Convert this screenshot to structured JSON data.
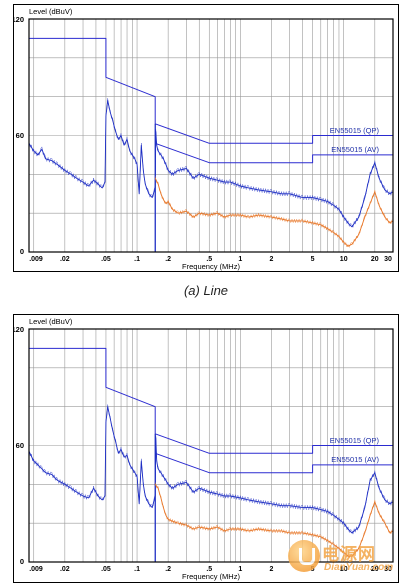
{
  "charts": [
    {
      "ylabel": "Level (dBuV)",
      "xlabel": "Frequency (MHz)",
      "yticks": [
        "0",
        "60",
        "120"
      ],
      "xticks": [
        ".009",
        ".02",
        ".05",
        ".1",
        ".2",
        ".5",
        "1",
        "2",
        "5",
        "10",
        "20",
        "30"
      ],
      "qp_label": "EN55015  (QP)",
      "av_label": "EN55015  (AV)"
    },
    {
      "ylabel": "Level (dBuV)",
      "xlabel": "Frequency (MHz)",
      "yticks": [
        "0",
        "60",
        "120"
      ],
      "xticks": [
        ".009",
        ".02",
        ".05",
        ".1",
        ".2",
        ".5",
        "1",
        "2",
        "5",
        "10",
        "20",
        "30"
      ],
      "qp_label": "EN55015  (QP)",
      "av_label": "EN55015  (AV)"
    }
  ],
  "caption": "(a) Line",
  "watermark": {
    "cn": "电源网",
    "en": "DianYuan.com",
    "icon": "power-plug-logo-icon"
  },
  "colors": {
    "limit": "#2b2bd0",
    "qp_trace": "#1f2fc4",
    "av_trace": "#e8782a",
    "grid": "#9a9a9a",
    "frame": "#000000"
  },
  "chart_data": [
    {
      "type": "line",
      "x_scale": "log",
      "xlim": [
        0.009,
        30
      ],
      "ylim": [
        0,
        120
      ],
      "grid": true,
      "series": [
        {
          "name": "EN55015  (QP)",
          "role": "limit_qp",
          "x": [
            0.009,
            0.05,
            0.05,
            0.15,
            0.15,
            0.5,
            5,
            5,
            30
          ],
          "y": [
            110,
            110,
            90,
            80,
            66,
            56,
            56,
            60,
            60
          ]
        },
        {
          "name": "EN55015  (AV)",
          "role": "limit_av",
          "x": [
            0.15,
            0.5,
            5,
            5,
            30
          ],
          "y": [
            56,
            46,
            46,
            50,
            50
          ]
        },
        {
          "role": "qp_trace",
          "x": [
            0.009,
            0.01,
            0.011,
            0.012,
            0.013,
            0.015,
            0.017,
            0.02,
            0.023,
            0.026,
            0.03,
            0.034,
            0.038,
            0.042,
            0.046,
            0.049,
            0.05,
            0.052,
            0.055,
            0.058,
            0.062,
            0.066,
            0.07,
            0.075,
            0.08,
            0.085,
            0.09,
            0.095,
            0.1,
            0.105,
            0.11,
            0.115,
            0.12,
            0.13,
            0.14,
            0.15,
            0.152,
            0.155,
            0.16,
            0.17,
            0.18,
            0.19,
            0.2,
            0.22,
            0.25,
            0.3,
            0.35,
            0.4,
            0.5,
            0.6,
            0.7,
            0.8,
            1,
            1.2,
            1.5,
            2,
            2.5,
            3,
            4,
            5,
            6,
            7,
            8,
            9,
            10,
            11,
            12,
            14,
            16,
            18,
            20,
            22,
            25,
            28,
            30
          ],
          "y": [
            56,
            52,
            50,
            53,
            48,
            47,
            45,
            42,
            40,
            38,
            36,
            34,
            37,
            35,
            33,
            36,
            70,
            78,
            72,
            68,
            62,
            58,
            60,
            55,
            58,
            52,
            50,
            48,
            45,
            30,
            55,
            42,
            35,
            30,
            28,
            33,
            62,
            55,
            52,
            50,
            48,
            45,
            42,
            40,
            42,
            43,
            38,
            40,
            38,
            37,
            36,
            36,
            34,
            33,
            32,
            31,
            30,
            30,
            28,
            28,
            27,
            26,
            24,
            22,
            18,
            15,
            13,
            18,
            28,
            40,
            46,
            38,
            32,
            30,
            31
          ]
        },
        {
          "role": "av_trace",
          "x": [
            0.15,
            0.16,
            0.17,
            0.18,
            0.19,
            0.2,
            0.22,
            0.25,
            0.3,
            0.35,
            0.4,
            0.5,
            0.6,
            0.7,
            0.8,
            1,
            1.2,
            1.5,
            2,
            2.5,
            3,
            4,
            5,
            6,
            7,
            8,
            9,
            10,
            11,
            12,
            14,
            16,
            18,
            20,
            22,
            25,
            28,
            30
          ],
          "y": [
            38,
            35,
            30,
            27,
            25,
            26,
            22,
            20,
            21,
            18,
            20,
            19,
            20,
            18,
            19,
            19,
            18,
            19,
            18,
            17,
            16,
            16,
            15,
            14,
            12,
            10,
            8,
            5,
            3,
            4,
            9,
            18,
            25,
            31,
            24,
            18,
            15,
            16
          ]
        }
      ]
    },
    {
      "type": "line",
      "x_scale": "log",
      "xlim": [
        0.009,
        30
      ],
      "ylim": [
        0,
        120
      ],
      "grid": true,
      "series": [
        {
          "name": "EN55015  (QP)",
          "role": "limit_qp",
          "x": [
            0.009,
            0.05,
            0.05,
            0.15,
            0.15,
            0.5,
            5,
            5,
            30
          ],
          "y": [
            110,
            110,
            90,
            80,
            66,
            56,
            56,
            60,
            60
          ]
        },
        {
          "name": "EN55015  (AV)",
          "role": "limit_av",
          "x": [
            0.15,
            0.5,
            5,
            5,
            30
          ],
          "y": [
            56,
            46,
            46,
            50,
            50
          ]
        },
        {
          "role": "qp_trace",
          "x": [
            0.009,
            0.01,
            0.011,
            0.012,
            0.013,
            0.015,
            0.017,
            0.02,
            0.023,
            0.026,
            0.03,
            0.034,
            0.038,
            0.042,
            0.046,
            0.049,
            0.05,
            0.052,
            0.055,
            0.058,
            0.062,
            0.066,
            0.07,
            0.075,
            0.08,
            0.085,
            0.09,
            0.095,
            0.1,
            0.105,
            0.11,
            0.115,
            0.12,
            0.13,
            0.14,
            0.15,
            0.152,
            0.155,
            0.16,
            0.17,
            0.18,
            0.19,
            0.2,
            0.22,
            0.25,
            0.3,
            0.35,
            0.4,
            0.5,
            0.6,
            0.7,
            0.8,
            1,
            1.2,
            1.5,
            2,
            2.5,
            3,
            4,
            5,
            6,
            7,
            8,
            9,
            10,
            11,
            12,
            14,
            16,
            18,
            20,
            22,
            25,
            28,
            30
          ],
          "y": [
            57,
            52,
            50,
            48,
            46,
            45,
            42,
            40,
            38,
            36,
            34,
            33,
            38,
            34,
            32,
            34,
            72,
            80,
            74,
            68,
            62,
            56,
            58,
            54,
            55,
            50,
            48,
            46,
            44,
            30,
            52,
            40,
            34,
            30,
            28,
            34,
            64,
            52,
            48,
            46,
            44,
            42,
            40,
            38,
            40,
            41,
            36,
            38,
            36,
            35,
            34,
            34,
            33,
            32,
            31,
            30,
            29,
            29,
            28,
            28,
            27,
            26,
            24,
            22,
            20,
            17,
            15,
            18,
            28,
            42,
            46,
            38,
            32,
            30,
            31
          ]
        },
        {
          "role": "av_trace",
          "x": [
            0.15,
            0.16,
            0.17,
            0.18,
            0.19,
            0.2,
            0.22,
            0.25,
            0.3,
            0.35,
            0.4,
            0.5,
            0.6,
            0.7,
            0.8,
            1,
            1.2,
            1.5,
            2,
            2.5,
            3,
            4,
            5,
            6,
            7,
            8,
            9,
            10,
            11,
            12,
            14,
            16,
            18,
            20,
            22,
            25,
            28,
            30
          ],
          "y": [
            40,
            38,
            33,
            28,
            24,
            22,
            21,
            20,
            19,
            17,
            18,
            17,
            18,
            16,
            17,
            17,
            16,
            17,
            16,
            16,
            15,
            15,
            14,
            13,
            11,
            9,
            7,
            5,
            3,
            3,
            7,
            15,
            24,
            31,
            25,
            20,
            15,
            16
          ]
        }
      ]
    }
  ]
}
